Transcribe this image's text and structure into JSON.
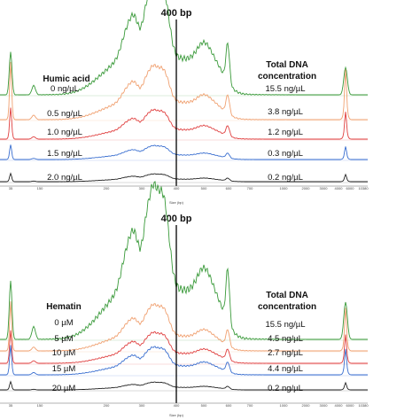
{
  "chart_data": [
    {
      "type": "line",
      "marker_label": "400 bp",
      "xlabel": "Size (bp)",
      "x_ticks": [
        "35",
        "150",
        "200",
        "300",
        "400",
        "500",
        "600",
        "700",
        "1000",
        "2000",
        "3000",
        "4000",
        "6000",
        "10380"
      ],
      "left_header": "Humic acid",
      "right_header": [
        "Total DNA",
        "concentration"
      ],
      "series": [
        {
          "name": "0 ng/µL",
          "concentration": "15.5 ng/µL",
          "color": "#3a9a3a",
          "level": 1.0
        },
        {
          "name": "0.5 ng/µL",
          "concentration": "3.8 ng/µL",
          "color": "#f0a070",
          "level": 0.55
        },
        {
          "name": "1.0 ng/µL",
          "concentration": "1.2 ng/µL",
          "color": "#e04040",
          "level": 0.22
        },
        {
          "name": "1.5 ng/µL",
          "concentration": "0.3 ng/µL",
          "color": "#3a6fd0",
          "level": 0.1
        },
        {
          "name": "2.0 ng/µL",
          "concentration": "0.2 ng/µL",
          "color": "#222222",
          "level": 0.05
        }
      ]
    },
    {
      "type": "line",
      "marker_label": "400 bp",
      "xlabel": "Size (bp)",
      "x_ticks": [
        "35",
        "150",
        "200",
        "300",
        "400",
        "500",
        "600",
        "700",
        "1000",
        "2000",
        "3000",
        "4000",
        "6000",
        "10380"
      ],
      "left_header": "Hematin",
      "right_header": [
        "Total DNA",
        "concentration"
      ],
      "series": [
        {
          "name": "0 µM",
          "concentration": "15.5 ng/µL",
          "color": "#3a9a3a",
          "level": 1.0
        },
        {
          "name": "5 µM",
          "concentration": "4.5 ng/µL",
          "color": "#f0a070",
          "level": 0.3
        },
        {
          "name": "10 µM",
          "concentration": "2.7 ng/µL",
          "color": "#e04040",
          "level": 0.2
        },
        {
          "name": "15 µM",
          "concentration": "4.4 ng/µL",
          "color": "#3a6fd0",
          "level": 0.22
        },
        {
          "name": "20 µM",
          "concentration": "0.2 ng/µL",
          "color": "#222222",
          "level": 0.06
        }
      ]
    }
  ]
}
